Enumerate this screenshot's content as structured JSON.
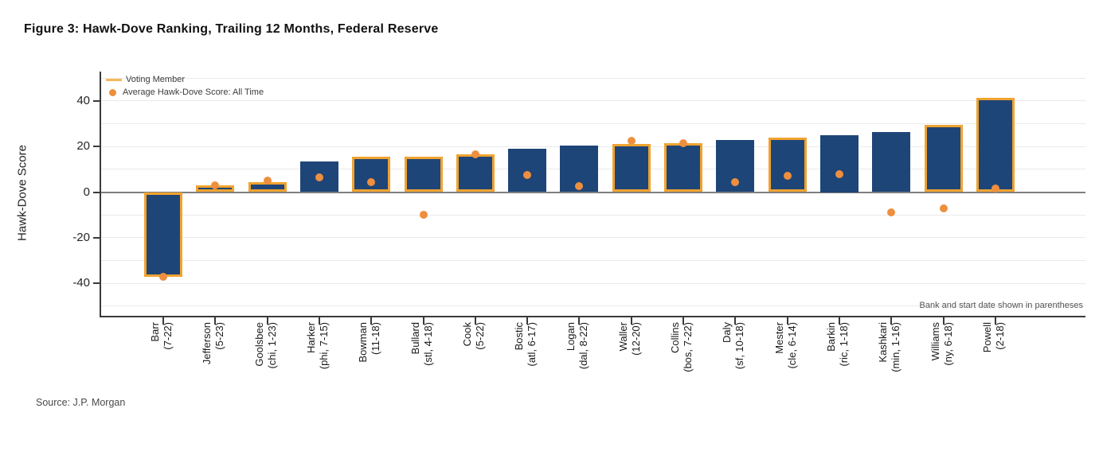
{
  "title": "Figure 3: Hawk-Dove Ranking, Trailing 12 Months, Federal Reserve",
  "source": "Source: J.P. Morgan",
  "colors": {
    "bar_fill": "#1e4577",
    "voting_outline": "#f0a32f",
    "avg_dot": "#ee8f3f",
    "zero_line": "#7f7f7f",
    "axis": "#3a3a3a",
    "gridline": "#eaeaea"
  },
  "chart_data": {
    "type": "bar",
    "title": "Figure 3: Hawk-Dove Ranking, Trailing 12 Months, Federal Reserve",
    "ylabel": "Hawk-Dove Score",
    "xlabel": "",
    "yticks": [
      40,
      20,
      0,
      -20,
      -40
    ],
    "ylim": [
      -54,
      52
    ],
    "grid_step": 10,
    "grid": true,
    "legend_position": "top-left",
    "footnote": "Bank and start date shown in parentheses",
    "legend": [
      {
        "swatch": "line",
        "label": "Voting Member"
      },
      {
        "swatch": "dot",
        "label": "Average Hawk-Dove Score: All Time"
      }
    ],
    "series_note": "bars = trailing 12-month hawk-dove score; orange outline = voting member; dots = average hawk-dove score all time",
    "members": [
      {
        "name": "Barr",
        "detail": "(7-22)",
        "score": -37,
        "voting": true,
        "avg_all_time": -37
      },
      {
        "name": "Jefferson",
        "detail": "(5-23)",
        "score": 3,
        "voting": true,
        "avg_all_time": 3
      },
      {
        "name": "Goolsbee",
        "detail": "(chi, 1-23)",
        "score": 4.5,
        "voting": true,
        "avg_all_time": 5
      },
      {
        "name": "Harker",
        "detail": "(phi, 7-15)",
        "score": 13.5,
        "voting": false,
        "avg_all_time": 6.5
      },
      {
        "name": "Bowman",
        "detail": "(11-18)",
        "score": 15.5,
        "voting": true,
        "avg_all_time": 4.5
      },
      {
        "name": "Bullard",
        "detail": "(stl, 4-18)",
        "score": 15.5,
        "voting": true,
        "avg_all_time": -10
      },
      {
        "name": "Cook",
        "detail": "(5-22)",
        "score": 16.5,
        "voting": true,
        "avg_all_time": 16.5
      },
      {
        "name": "Bostic",
        "detail": "(atl, 6-17)",
        "score": 19,
        "voting": false,
        "avg_all_time": 7.5
      },
      {
        "name": "Logan",
        "detail": "(dal, 8-22)",
        "score": 20.5,
        "voting": false,
        "avg_all_time": 2.5
      },
      {
        "name": "Waller",
        "detail": "(12-20)",
        "score": 21,
        "voting": true,
        "avg_all_time": 22.5
      },
      {
        "name": "Collins",
        "detail": "(bos, 7-22)",
        "score": 21.5,
        "voting": true,
        "avg_all_time": 21.5
      },
      {
        "name": "Daly",
        "detail": "(sf, 10-18)",
        "score": 23,
        "voting": false,
        "avg_all_time": 4.5
      },
      {
        "name": "Mester",
        "detail": "(cle, 6-14)",
        "score": 24,
        "voting": true,
        "avg_all_time": 7
      },
      {
        "name": "Barkin",
        "detail": "(ric, 1-18)",
        "score": 25,
        "voting": false,
        "avg_all_time": 8
      },
      {
        "name": "Kashkari",
        "detail": "(min, 1-16)",
        "score": 26.5,
        "voting": false,
        "avg_all_time": -9
      },
      {
        "name": "Williams",
        "detail": "(ny, 6-18)",
        "score": 29.5,
        "voting": true,
        "avg_all_time": -7
      },
      {
        "name": "Powell",
        "detail": "(2-18)",
        "score": 41.5,
        "voting": true,
        "avg_all_time": 1.5
      }
    ]
  }
}
